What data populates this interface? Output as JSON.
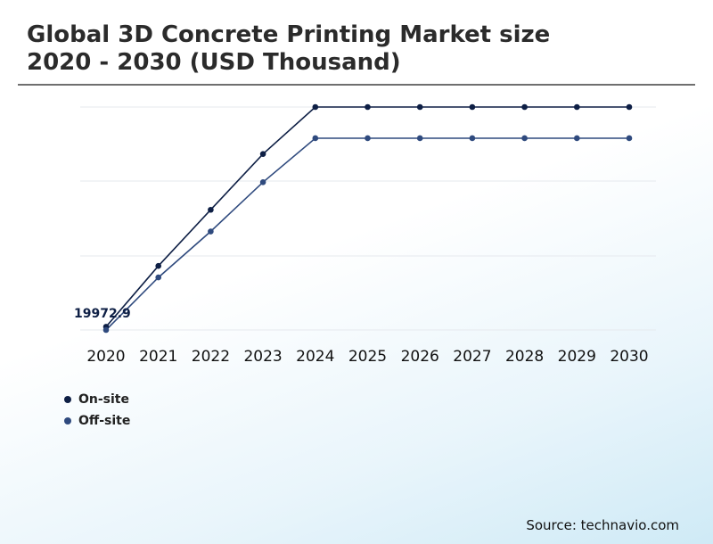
{
  "title_line1": "Global 3D Concrete Printing Market size",
  "title_line2": "2020 - 2030 (USD Thousand)",
  "source": "Source: technavio.com",
  "chart_data": {
    "type": "line",
    "categories": [
      "2020",
      "2021",
      "2022",
      "2023",
      "2024",
      "2025",
      "2026",
      "2027",
      "2028",
      "2029",
      "2030"
    ],
    "series": [
      {
        "name": "On-site",
        "color": "#0e1f45",
        "values": [
          19972.9,
          38500,
          55600,
          72600,
          86900,
          86900,
          86900,
          86900,
          86900,
          86900,
          86900
        ]
      },
      {
        "name": "Off-site",
        "color": "#2f4a7e",
        "values": [
          19000,
          35000,
          49000,
          64000,
          77400,
          77400,
          77400,
          77400,
          77400,
          77400,
          77400
        ]
      }
    ],
    "annotation": "19972.9",
    "ylim": [
      19000,
      86900
    ],
    "grid": true,
    "legend_position": "bottom-left"
  }
}
